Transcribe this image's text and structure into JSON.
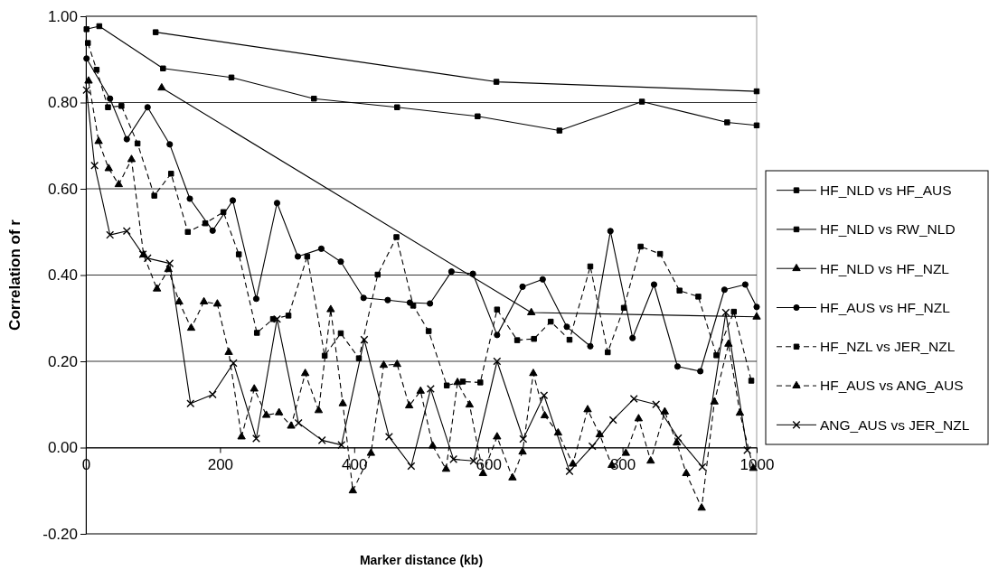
{
  "chart_data": {
    "type": "line",
    "xlabel": "Marker distance (kb)",
    "ylabel": "Correlation of r",
    "xlim": [
      0,
      1000
    ],
    "ylim": [
      -0.2,
      1
    ],
    "xticks": [
      0,
      200,
      400,
      600,
      800,
      1000
    ],
    "yticks": [
      {
        "value": -0.2,
        "label": "-0.20"
      },
      {
        "value": 0,
        "label": "0.00"
      },
      {
        "value": 0.2,
        "label": "0.20"
      },
      {
        "value": 0.4,
        "label": "0.40"
      },
      {
        "value": 0.6,
        "label": "0.60"
      },
      {
        "value": 0.8,
        "label": "0.80"
      },
      {
        "value": 1,
        "label": "1.00"
      }
    ],
    "grid": "y",
    "legend": "right",
    "series": [
      {
        "name": "HF_NLD vs HF_AUS",
        "color": "#000000",
        "marker": "square",
        "line_style": "solid",
        "x": [
          104,
          612,
          1000
        ],
        "values": [
          0.963,
          0.848,
          0.826
        ]
      },
      {
        "name": "HF_NLD vs RW_NLD",
        "color": "#000000",
        "marker": "square",
        "line_style": "solid",
        "x": [
          1,
          20,
          115,
          217,
          340,
          464,
          584,
          706,
          829,
          956,
          1000
        ],
        "values": [
          0.97,
          0.977,
          0.879,
          0.858,
          0.809,
          0.789,
          0.768,
          0.735,
          0.802,
          0.754,
          0.747
        ]
      },
      {
        "name": "HF_NLD vs HF_NZL",
        "color": "#000000",
        "marker": "triangle",
        "line_style": "solid",
        "x": [
          113,
          664,
          1000
        ],
        "values": [
          0.834,
          0.313,
          0.303
        ]
      },
      {
        "name": "HF_AUS vs HF_NZL",
        "color": "#000000",
        "marker": "circle",
        "line_style": "solid",
        "x": [
          1,
          36,
          61,
          92,
          125,
          155,
          189,
          219,
          254,
          285,
          316,
          351,
          380,
          414,
          450,
          483,
          513,
          545,
          577,
          613,
          651,
          681,
          717,
          752,
          782,
          815,
          847,
          882,
          916,
          952,
          983,
          1000
        ],
        "values": [
          0.902,
          0.809,
          0.715,
          0.789,
          0.703,
          0.577,
          0.503,
          0.573,
          0.345,
          0.567,
          0.443,
          0.461,
          0.431,
          0.347,
          0.342,
          0.336,
          0.334,
          0.408,
          0.403,
          0.261,
          0.373,
          0.39,
          0.28,
          0.235,
          0.502,
          0.254,
          0.378,
          0.188,
          0.177,
          0.366,
          0.378,
          0.326
        ]
      },
      {
        "name": "HF_NZL vs JER_NZL",
        "color": "#000000",
        "marker": "square",
        "line_style": "dashed",
        "x": [
          3,
          16,
          33,
          53,
          77,
          102,
          127,
          152,
          178,
          205,
          228,
          255,
          279,
          302,
          330,
          356,
          380,
          407,
          435,
          463,
          488,
          511,
          538,
          562,
          588,
          613,
          643,
          668,
          693,
          721,
          752,
          778,
          802,
          827,
          856,
          885,
          913,
          940,
          966,
          992
        ],
        "values": [
          0.938,
          0.876,
          0.789,
          0.792,
          0.705,
          0.584,
          0.635,
          0.5,
          0.52,
          0.546,
          0.448,
          0.266,
          0.298,
          0.306,
          0.443,
          0.213,
          0.265,
          0.207,
          0.401,
          0.488,
          0.329,
          0.27,
          0.144,
          0.153,
          0.151,
          0.32,
          0.249,
          0.252,
          0.292,
          0.25,
          0.42,
          0.221,
          0.324,
          0.466,
          0.449,
          0.364,
          0.35,
          0.214,
          0.315,
          0.155
        ]
      },
      {
        "name": "HF_AUS vs ANG_AUS",
        "color": "#000000",
        "marker": "triangle",
        "line_style": "dashed",
        "x": [
          4,
          19,
          34,
          49,
          68,
          86,
          106,
          123,
          139,
          157,
          176,
          196,
          213,
          232,
          251,
          269,
          288,
          306,
          327,
          347,
          365,
          383,
          398,
          425,
          444,
          464,
          482,
          499,
          517,
          537,
          554,
          572,
          592,
          613,
          636,
          651,
          667,
          684,
          704,
          726,
          748,
          766,
          784,
          805,
          824,
          842,
          863,
          881,
          895,
          918,
          937,
          958,
          975,
          995
        ],
        "values": [
          0.85,
          0.71,
          0.647,
          0.61,
          0.668,
          0.447,
          0.368,
          0.413,
          0.338,
          0.277,
          0.338,
          0.333,
          0.221,
          0.025,
          0.136,
          0.075,
          0.081,
          0.05,
          0.172,
          0.086,
          0.32,
          0.102,
          -0.1,
          -0.013,
          0.191,
          0.193,
          0.097,
          0.131,
          0.004,
          -0.05,
          0.151,
          0.099,
          -0.06,
          0.025,
          -0.07,
          -0.01,
          0.172,
          0.074,
          0.034,
          -0.038,
          0.088,
          0.03,
          -0.041,
          -0.013,
          0.067,
          -0.031,
          0.083,
          0.011,
          -0.06,
          -0.14,
          0.106,
          0.24,
          0.08,
          -0.048
        ]
      },
      {
        "name": "ANG_AUS vs JER_NZL",
        "color": "#000000",
        "marker": "cross",
        "line_style": "solid",
        "x": [
          1,
          13,
          36,
          61,
          85,
          92,
          125,
          156,
          189,
          220,
          254,
          285,
          317,
          352,
          381,
          415,
          452,
          485,
          514,
          548,
          578,
          613,
          652,
          683,
          721,
          755,
          786,
          817,
          850,
          883,
          919,
          954,
          986
        ],
        "values": [
          0.829,
          0.654,
          0.493,
          0.502,
          0.448,
          0.439,
          0.427,
          0.102,
          0.123,
          0.196,
          0.021,
          0.298,
          0.057,
          0.017,
          0.006,
          0.25,
          0.025,
          -0.043,
          0.136,
          -0.027,
          -0.031,
          0.2,
          0.02,
          0.121,
          -0.055,
          0.003,
          0.064,
          0.113,
          0.1,
          0.022,
          -0.045,
          0.313,
          -0.006
        ]
      }
    ]
  }
}
